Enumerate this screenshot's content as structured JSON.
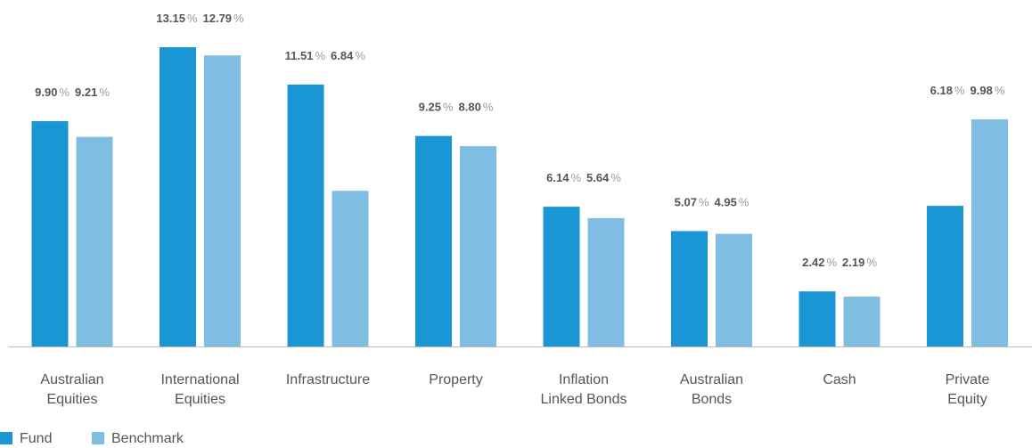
{
  "chart_data": {
    "type": "bar",
    "categories": [
      "Australian\nEquities",
      "International\nEquities",
      "Infrastructure",
      "Property",
      "Inflation\nLinked Bonds",
      "Australian\nBonds",
      "Cash",
      "Private\nEquity"
    ],
    "series": [
      {
        "name": "Fund",
        "color": "#1b96d4",
        "values": [
          9.9,
          13.15,
          11.51,
          9.25,
          6.14,
          5.07,
          2.42,
          6.18
        ],
        "value_labels": [
          "9.90 %",
          "13.15 %",
          "11.51 %",
          "9.25 %",
          "6.14 %",
          "5.07 %",
          "2.42 %",
          "6.18 %"
        ]
      },
      {
        "name": "Benchmark",
        "color": "#7fbde3",
        "values": [
          9.21,
          12.79,
          6.84,
          8.8,
          5.64,
          4.95,
          2.19,
          9.98
        ],
        "value_labels": [
          "9.21 %",
          "12.79 %",
          "6.84 %",
          "8.80 %",
          "5.64 %",
          "4.95 %",
          "2.19 %",
          "9.98 %"
        ]
      }
    ],
    "legend": "bottom-left"
  }
}
